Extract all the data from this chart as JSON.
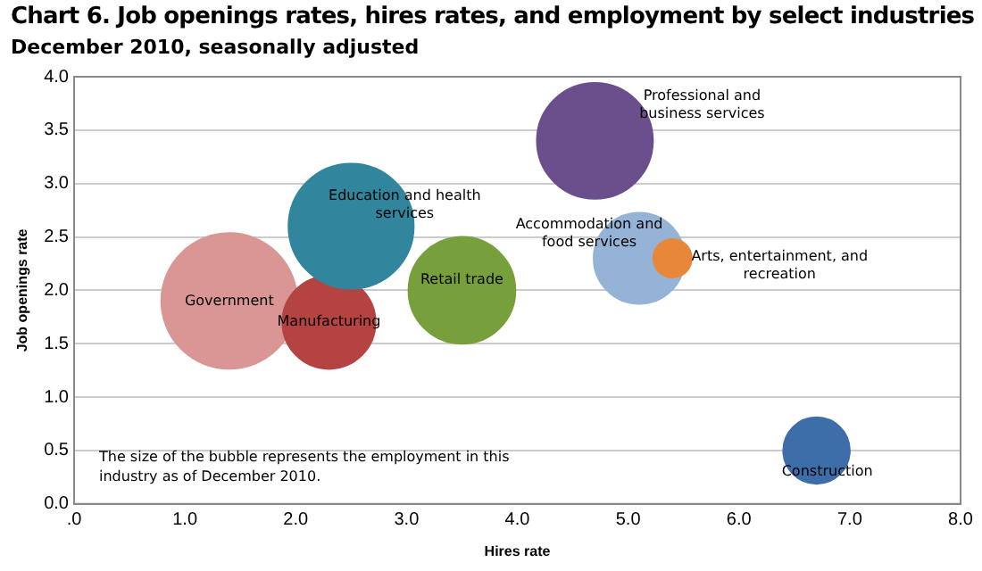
{
  "chart_data": {
    "type": "bubble",
    "title": "Chart 6. Job openings rates, hires rates, and employment by select industries",
    "subtitle": "December 2010, seasonally adjusted",
    "xlabel": "Hires rate",
    "ylabel": "Job openings rate",
    "xlim": [
      0,
      8
    ],
    "xticks": [
      {
        "value": 0,
        "label": ".0"
      },
      {
        "value": 1,
        "label": "1.0"
      },
      {
        "value": 2,
        "label": "2.0"
      },
      {
        "value": 3,
        "label": "3.0"
      },
      {
        "value": 4,
        "label": "4.0"
      },
      {
        "value": 5,
        "label": "5.0"
      },
      {
        "value": 6,
        "label": "6.0"
      },
      {
        "value": 7,
        "label": "7.0"
      },
      {
        "value": 8,
        "label": "8.0"
      }
    ],
    "ylim": [
      0,
      4
    ],
    "yticks": [
      {
        "value": 0,
        "label": "0.0"
      },
      {
        "value": 0.5,
        "label": "0.5"
      },
      {
        "value": 1,
        "label": "1.0"
      },
      {
        "value": 1.5,
        "label": "1.5"
      },
      {
        "value": 2,
        "label": "2.0"
      },
      {
        "value": 2.5,
        "label": "2.5"
      },
      {
        "value": 3,
        "label": "3.0"
      },
      {
        "value": 3.5,
        "label": "3.5"
      },
      {
        "value": 4,
        "label": "4.0"
      }
    ],
    "grid": "y",
    "legend": false,
    "annotations": [
      "The size of the bubble represents the employment in this industry as of December 2010."
    ],
    "series": [
      {
        "name": "Government",
        "color": "#d99694",
        "x": [
          1.4
        ],
        "values": [
          1.9
        ],
        "sizes": [
          1
        ]
      },
      {
        "name": "Manufacturing",
        "color": "#b54341",
        "x": [
          2.3
        ],
        "values": [
          1.7
        ],
        "sizes": [
          0.47
        ]
      },
      {
        "name": "Education and health services",
        "color": "#31859c",
        "x": [
          2.5
        ],
        "values": [
          2.6
        ],
        "sizes": [
          0.85
        ]
      },
      {
        "name": "Retail trade",
        "color": "#77a03c",
        "x": [
          3.5
        ],
        "values": [
          2.0
        ],
        "sizes": [
          0.62
        ]
      },
      {
        "name": "Professional and business services",
        "color": "#6a4f8c",
        "x": [
          4.7
        ],
        "values": [
          3.4
        ],
        "sizes": [
          0.73
        ]
      },
      {
        "name": "Accommodation and food services",
        "color": "#95b3d7",
        "x": [
          5.1
        ],
        "values": [
          2.3
        ],
        "sizes": [
          0.45
        ]
      },
      {
        "name": "Arts, entertainment, and recreation",
        "color": "#e8873a",
        "x": [
          5.4
        ],
        "values": [
          2.3
        ],
        "sizes": [
          0.08
        ]
      },
      {
        "name": "Construction",
        "color": "#3e6eaa",
        "x": [
          6.7
        ],
        "values": [
          0.5
        ],
        "sizes": [
          0.24
        ]
      }
    ]
  }
}
